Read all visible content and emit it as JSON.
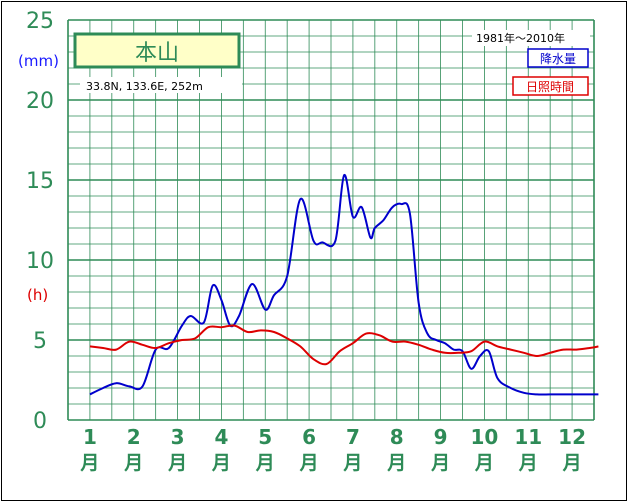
{
  "chart_data": {
    "type": "line",
    "station": "本山",
    "location": "33.8N,  133.6E,  252m",
    "period": "1981年〜2010年",
    "y_unit_left": "(mm)",
    "y_unit_right": "(h)",
    "ylim": [
      0,
      25
    ],
    "yticks": [
      "0",
      "5",
      "10",
      "15",
      "20",
      "25"
    ],
    "month_numbers": [
      "1",
      "2",
      "3",
      "4",
      "5",
      "6",
      "7",
      "8",
      "9",
      "10",
      "11",
      "12"
    ],
    "month_suffix": "月",
    "grid": true,
    "colors": {
      "precip": "#0000cc",
      "sunshine": "#dd0000",
      "grid": "#2e8b57",
      "axis_text": "#2e8b57"
    },
    "series": [
      {
        "name": "降水量",
        "x": [
          1.0,
          1.3,
          1.6,
          1.9,
          2.2,
          2.5,
          2.8,
          3.1,
          3.3,
          3.6,
          3.8,
          4.0,
          4.2,
          4.4,
          4.7,
          5.0,
          5.2,
          5.5,
          5.8,
          6.1,
          6.3,
          6.6,
          6.8,
          7.0,
          7.2,
          7.4,
          7.5,
          7.7,
          7.9,
          8.1,
          8.3,
          8.5,
          8.7,
          8.9,
          9.1,
          9.3,
          9.5,
          9.7,
          9.9,
          10.1,
          10.3,
          10.6,
          10.9,
          11.2,
          11.5,
          11.8,
          12.0,
          12.3,
          12.6
        ],
        "y": [
          1.6,
          2.0,
          2.3,
          2.1,
          2.1,
          4.4,
          4.5,
          5.9,
          6.5,
          6.1,
          8.4,
          7.5,
          5.9,
          6.5,
          8.5,
          6.9,
          7.8,
          9.0,
          13.8,
          11.2,
          11.1,
          11.2,
          15.3,
          12.7,
          13.3,
          11.4,
          12.0,
          12.5,
          13.3,
          13.5,
          12.9,
          7.3,
          5.4,
          5.0,
          4.8,
          4.4,
          4.3,
          3.2,
          4.0,
          4.3,
          2.6,
          2.0,
          1.7,
          1.6,
          1.6,
          1.6,
          1.6,
          1.6,
          1.6
        ]
      },
      {
        "name": "日照時間",
        "x": [
          1.0,
          1.3,
          1.6,
          1.9,
          2.2,
          2.5,
          2.8,
          3.1,
          3.4,
          3.7,
          4.0,
          4.3,
          4.6,
          4.9,
          5.2,
          5.5,
          5.8,
          6.1,
          6.4,
          6.7,
          7.0,
          7.3,
          7.6,
          7.9,
          8.2,
          8.5,
          8.8,
          9.1,
          9.4,
          9.7,
          10.0,
          10.3,
          10.6,
          10.9,
          11.2,
          11.5,
          11.8,
          12.1,
          12.4,
          12.6
        ],
        "y": [
          4.6,
          4.5,
          4.4,
          4.9,
          4.7,
          4.5,
          4.8,
          5.0,
          5.1,
          5.8,
          5.8,
          5.9,
          5.5,
          5.6,
          5.5,
          5.1,
          4.6,
          3.8,
          3.5,
          4.3,
          4.8,
          5.4,
          5.3,
          4.9,
          4.9,
          4.7,
          4.4,
          4.2,
          4.2,
          4.3,
          4.9,
          4.6,
          4.4,
          4.2,
          4.0,
          4.2,
          4.4,
          4.4,
          4.5,
          4.6
        ]
      }
    ]
  }
}
